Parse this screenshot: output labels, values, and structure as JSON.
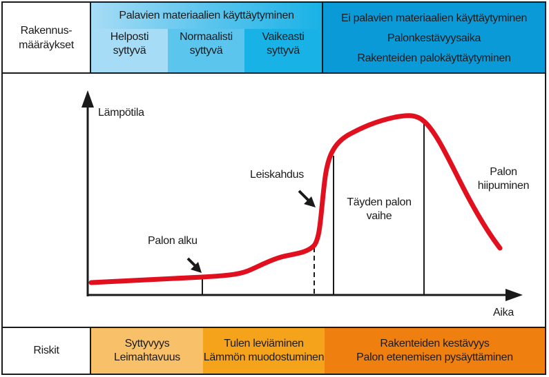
{
  "header": {
    "left_label": "Rakennus-\nmääräykset",
    "combustible": {
      "title": "Palavien materiaalien käyttäytyminen",
      "groups": [
        {
          "line1": "Helposti",
          "line2": "syttyvä",
          "color": "#a6dcf5"
        },
        {
          "line1": "Normaalisti",
          "line2": "syttyvä",
          "color": "#5cc5ee"
        },
        {
          "line1": "Vaikeasti",
          "line2": "syttyvä",
          "color": "#19b2e6"
        }
      ]
    },
    "noncombustible": {
      "line1": "Ei palavien materiaalien käyttäytyminen",
      "line2": "Palonkestävyysaika",
      "line3": "Rakenteiden palokäyttäytyminen",
      "color": "#0a9ad8"
    }
  },
  "diagram": {
    "y_axis_label": "Lämpötila",
    "x_axis_label": "Aika",
    "annotations": {
      "ignition": "Palon alku",
      "flashover": "Leiskahdus",
      "full_fire": "Täyden palon\nvaihe",
      "decay": "Palon\nhiipuminen"
    },
    "curve_color": "#e0101f"
  },
  "footer": {
    "left_label": "Riskit",
    "segments": [
      {
        "line1": "Syttyvyys",
        "line2": "Leimahtavuus",
        "color": "#f9c06a"
      },
      {
        "line1": "Tulen leviäminen",
        "line2": "Lämmön muodostuminen",
        "color": "#f5a31a"
      },
      {
        "line1": "Rakenteiden kestävyys",
        "line2": "Palon etenemisen pysäyttäminen",
        "color": "#ef8010"
      }
    ]
  }
}
